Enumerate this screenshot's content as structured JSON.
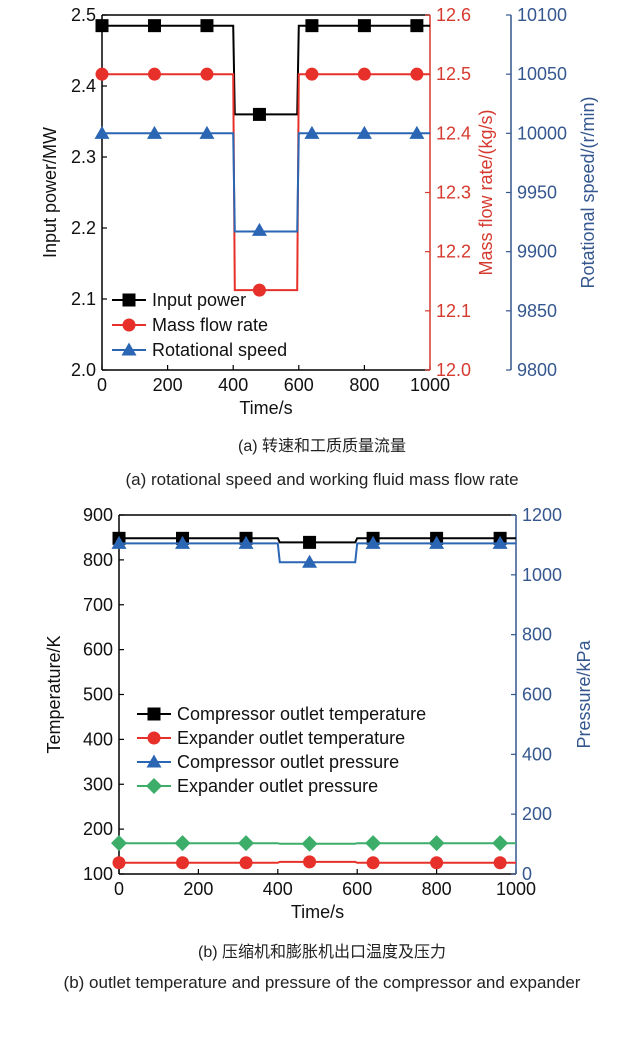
{
  "colors": {
    "black": "#000000",
    "red": "#e8302a",
    "blue": "#2a66b3",
    "green": "#3dae6a",
    "redAxis": "#d63a2f",
    "blueAxis": "#35578f"
  },
  "chart_data": [
    {
      "type": "line",
      "title": "",
      "xlabel": "Time/s",
      "xlim": [
        0,
        1000
      ],
      "xticks": [
        "0",
        "200",
        "400",
        "600",
        "800",
        "1000"
      ],
      "axes": {
        "left": {
          "label": "Input power/MW",
          "lim": [
            2.0,
            2.5
          ],
          "ticks": [
            "2.0",
            "2.1",
            "2.2",
            "2.3",
            "2.4",
            "2.5"
          ]
        },
        "right1": {
          "label": "Mass flow rate/(kg/s)",
          "lim": [
            12.0,
            12.6
          ],
          "ticks": [
            "12.0",
            "12.1",
            "12.2",
            "12.3",
            "12.4",
            "12.5",
            "12.6"
          ]
        },
        "right2": {
          "label": "Rotational speed/(r/min)",
          "lim": [
            9800,
            10100
          ],
          "ticks": [
            "9800",
            "9850",
            "9900",
            "9950",
            "10000",
            "10050",
            "10100"
          ]
        }
      },
      "legend_position": "bottom-left",
      "series": [
        {
          "name": "Input power",
          "axis": "left",
          "color": "black",
          "marker": "square",
          "line": [
            [
              0,
              2.485
            ],
            [
              400,
              2.485
            ],
            [
              405,
              2.36
            ],
            [
              595,
              2.36
            ],
            [
              600,
              2.485
            ],
            [
              1000,
              2.485
            ]
          ],
          "markers": [
            [
              0,
              2.485
            ],
            [
              160,
              2.485
            ],
            [
              320,
              2.485
            ],
            [
              480,
              2.36
            ],
            [
              640,
              2.485
            ],
            [
              800,
              2.485
            ],
            [
              960,
              2.485
            ]
          ]
        },
        {
          "name": "Mass flow rate",
          "axis": "right1",
          "color": "red",
          "marker": "circle",
          "line": [
            [
              0,
              12.5
            ],
            [
              400,
              12.5
            ],
            [
              405,
              12.135
            ],
            [
              595,
              12.135
            ],
            [
              600,
              12.5
            ],
            [
              1000,
              12.5
            ]
          ],
          "markers": [
            [
              0,
              12.5
            ],
            [
              160,
              12.5
            ],
            [
              320,
              12.5
            ],
            [
              480,
              12.135
            ],
            [
              640,
              12.5
            ],
            [
              800,
              12.5
            ],
            [
              960,
              12.5
            ]
          ]
        },
        {
          "name": "Rotational speed",
          "axis": "right2",
          "color": "blue",
          "marker": "triangle",
          "line": [
            [
              0,
              10000
            ],
            [
              400,
              10000
            ],
            [
              405,
              9917
            ],
            [
              595,
              9917
            ],
            [
              600,
              10000
            ],
            [
              1000,
              10000
            ]
          ],
          "markers": [
            [
              0,
              10000
            ],
            [
              160,
              10000
            ],
            [
              320,
              10000
            ],
            [
              480,
              9918
            ],
            [
              640,
              10000
            ],
            [
              800,
              10000
            ],
            [
              960,
              10000
            ]
          ]
        }
      ]
    },
    {
      "type": "line",
      "title": "",
      "xlabel": "Time/s",
      "xlim": [
        0,
        1000
      ],
      "xticks": [
        "0",
        "200",
        "400",
        "600",
        "800",
        "1000"
      ],
      "axes": {
        "left": {
          "label": "Temperature/K",
          "lim": [
            100,
            900
          ],
          "ticks": [
            "100",
            "200",
            "300",
            "400",
            "500",
            "600",
            "700",
            "800",
            "900"
          ]
        },
        "right1": {
          "label": "Pressure/kPa",
          "lim": [
            0,
            1200
          ],
          "ticks": [
            "0",
            "200",
            "400",
            "600",
            "800",
            "1000",
            "1200"
          ]
        }
      },
      "legend_position": "center-left",
      "series": [
        {
          "name": "Compressor outlet temperature",
          "axis": "left",
          "color": "black",
          "marker": "square",
          "line": [
            [
              0,
              848
            ],
            [
              400,
              848
            ],
            [
              405,
              839
            ],
            [
              595,
              839
            ],
            [
              600,
              848
            ],
            [
              1000,
              848
            ]
          ],
          "markers": [
            [
              0,
              848
            ],
            [
              160,
              848
            ],
            [
              320,
              848
            ],
            [
              480,
              839
            ],
            [
              640,
              848
            ],
            [
              800,
              848
            ],
            [
              960,
              848
            ]
          ]
        },
        {
          "name": "Expander outlet temperature",
          "axis": "left",
          "color": "red",
          "marker": "circle",
          "line": [
            [
              0,
              125
            ],
            [
              400,
              125
            ],
            [
              405,
              127
            ],
            [
              595,
              127
            ],
            [
              600,
              125
            ],
            [
              1000,
              125
            ]
          ],
          "markers": [
            [
              0,
              125
            ],
            [
              160,
              125
            ],
            [
              320,
              125
            ],
            [
              480,
              127
            ],
            [
              640,
              125
            ],
            [
              800,
              125
            ],
            [
              960,
              125
            ]
          ]
        },
        {
          "name": "Compressor outlet pressure",
          "axis": "right1",
          "color": "blue",
          "marker": "triangle",
          "line": [
            [
              0,
              1105
            ],
            [
              400,
              1105
            ],
            [
              405,
              1042
            ],
            [
              595,
              1042
            ],
            [
              600,
              1105
            ],
            [
              1000,
              1105
            ]
          ],
          "markers": [
            [
              0,
              1105
            ],
            [
              160,
              1105
            ],
            [
              320,
              1105
            ],
            [
              480,
              1042
            ],
            [
              640,
              1105
            ],
            [
              800,
              1105
            ],
            [
              960,
              1105
            ]
          ]
        },
        {
          "name": "Expander outlet pressure",
          "axis": "right1",
          "color": "green",
          "marker": "diamond",
          "line": [
            [
              0,
              103
            ],
            [
              400,
              103
            ],
            [
              405,
              101
            ],
            [
              595,
              101
            ],
            [
              600,
              103
            ],
            [
              1000,
              103
            ]
          ],
          "markers": [
            [
              0,
              103
            ],
            [
              160,
              103
            ],
            [
              320,
              103
            ],
            [
              480,
              101
            ],
            [
              640,
              103
            ],
            [
              800,
              103
            ],
            [
              960,
              103
            ]
          ]
        }
      ]
    }
  ],
  "captions": {
    "a_zh": "(a) 转速和工质质量流量",
    "a_en": "(a) rotational speed and working fluid mass flow rate",
    "b_zh": "(b) 压缩机和膨胀机出口温度及压力",
    "b_en": "(b) outlet temperature and pressure of the compressor and expander"
  }
}
